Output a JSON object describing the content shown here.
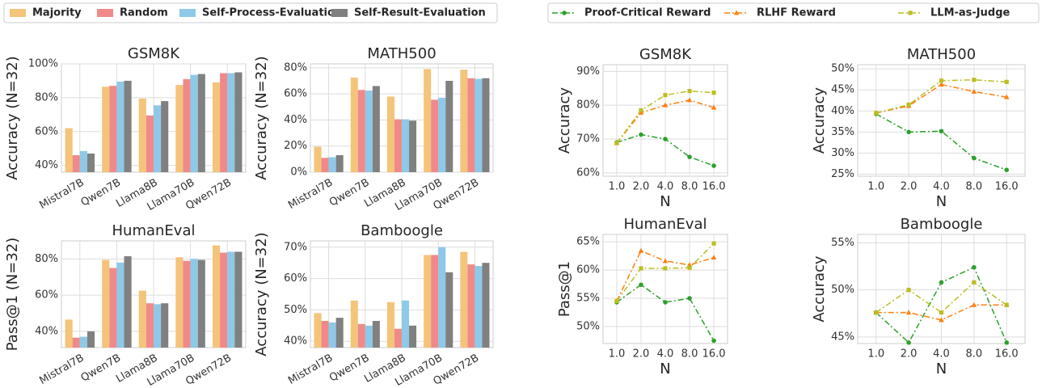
{
  "chart_data": [
    {
      "type": "bar",
      "title": "GSM8K",
      "ylabel": "Accuracy (N=32)",
      "categories": [
        "Mistral7B",
        "Qwen7B",
        "Llama8B",
        "Llama70B",
        "Qwen72B"
      ],
      "series": [
        {
          "name": "Majority",
          "color": "#f3c47a",
          "values": [
            62,
            86.5,
            79.5,
            87.5,
            89
          ]
        },
        {
          "name": "Random",
          "color": "#f08a8a",
          "values": [
            46,
            87,
            69.5,
            91,
            94.5
          ]
        },
        {
          "name": "Self-Process-Evaluation",
          "color": "#8ec9e8",
          "values": [
            48.5,
            89.5,
            75.5,
            93.5,
            94.5
          ]
        },
        {
          "name": "Self-Result-Evaluation",
          "color": "#808080",
          "values": [
            47,
            90,
            78,
            94,
            95
          ]
        }
      ],
      "ylim": [
        36,
        100
      ],
      "yticks": [
        {
          "value": 40,
          "label": "40%"
        },
        {
          "value": 60,
          "label": "60%"
        },
        {
          "value": 80,
          "label": "80%"
        },
        {
          "value": 100,
          "label": "100%"
        }
      ],
      "grid": true,
      "legend": "upper left"
    },
    {
      "type": "bar",
      "title": "MATH500",
      "ylabel": "Accuracy (N=32)",
      "categories": [
        "Mistral7B",
        "Qwen7B",
        "Llama8B",
        "Llama70B",
        "Qwen72B"
      ],
      "series": [
        {
          "color": "#f3c47a",
          "values": [
            19.5,
            72.5,
            58,
            79,
            78.5
          ]
        },
        {
          "color": "#f08a8a",
          "values": [
            11,
            63,
            40.5,
            55.5,
            72
          ]
        },
        {
          "color": "#8ec9e8",
          "values": [
            11.5,
            62.5,
            40.5,
            57,
            71.5
          ]
        },
        {
          "color": "#808080",
          "values": [
            13,
            66,
            39.5,
            70,
            72
          ]
        }
      ],
      "ylim": [
        0,
        83
      ],
      "yticks": [
        {
          "value": 0,
          "label": "0%"
        },
        {
          "value": 20,
          "label": "20%"
        },
        {
          "value": 40,
          "label": "40%"
        },
        {
          "value": 60,
          "label": "60%"
        },
        {
          "value": 80,
          "label": "80%"
        }
      ],
      "grid": true
    },
    {
      "type": "bar",
      "title": "HumanEval",
      "ylabel": "Pass@1 (N=32)",
      "categories": [
        "Mistral7B",
        "Qwen7B",
        "Llama8B",
        "Llama70B",
        "Qwen72B"
      ],
      "series": [
        {
          "color": "#f3c47a",
          "values": [
            46.5,
            79.5,
            62.5,
            81,
            87.5
          ]
        },
        {
          "color": "#f08a8a",
          "values": [
            36.5,
            75,
            55.5,
            79,
            83.5
          ]
        },
        {
          "color": "#8ec9e8",
          "values": [
            37,
            78,
            55,
            80,
            84
          ]
        },
        {
          "color": "#808080",
          "values": [
            40,
            81.5,
            55.5,
            79.5,
            84
          ]
        }
      ],
      "ylim": [
        31,
        90
      ],
      "yticks": [
        {
          "value": 40,
          "label": "40%"
        },
        {
          "value": 60,
          "label": "60%"
        },
        {
          "value": 80,
          "label": "80%"
        }
      ],
      "grid": true
    },
    {
      "type": "bar",
      "title": "Bamboogle",
      "ylabel": "Accuracy (N=32)",
      "categories": [
        "Mistral7B",
        "Qwen7B",
        "Llama8B",
        "Llama70B",
        "Qwen72B"
      ],
      "series": [
        {
          "color": "#f3c47a",
          "values": [
            49,
            53,
            52.5,
            67.5,
            68.5
          ]
        },
        {
          "color": "#f08a8a",
          "values": [
            46.5,
            45.5,
            44,
            67.5,
            64.5
          ]
        },
        {
          "color": "#8ec9e8",
          "values": [
            46,
            45,
            53,
            70,
            64
          ]
        },
        {
          "color": "#808080",
          "values": [
            47.5,
            46.5,
            45,
            62,
            65
          ]
        }
      ],
      "ylim": [
        38,
        72
      ],
      "yticks": [
        {
          "value": 40,
          "label": "40%"
        },
        {
          "value": 50,
          "label": "50%"
        },
        {
          "value": 60,
          "label": "60%"
        },
        {
          "value": 70,
          "label": "70%"
        }
      ],
      "grid": true
    },
    {
      "type": "line",
      "title": "GSM8K",
      "ylabel": "Accuracy",
      "xlabel": "N",
      "categories": [
        "1.0",
        "2.0",
        "4.0",
        "8.0",
        "16.0"
      ],
      "series": [
        {
          "name": "Proof-Critical Reward",
          "color": "#2ca02c",
          "marker": "circle",
          "linestyle": "dashdot",
          "values": [
            69,
            71.3,
            70,
            64.7,
            62.1
          ]
        },
        {
          "name": "RLHF Reward",
          "color": "#ff7f0e",
          "marker": "triangle",
          "linestyle": "dashdot",
          "values": [
            68.8,
            77.8,
            80,
            81.5,
            79.3
          ]
        },
        {
          "name": "LLM-as-Judge",
          "color": "#bcbd22",
          "marker": "square",
          "linestyle": "dashdot",
          "values": [
            68.8,
            78.5,
            83,
            84.2,
            83.7
          ]
        }
      ],
      "ylim": [
        59,
        92
      ],
      "yticks": [
        {
          "value": 60,
          "label": "60%"
        },
        {
          "value": 70,
          "label": "70%"
        },
        {
          "value": 80,
          "label": "80%"
        },
        {
          "value": 90,
          "label": "90%"
        }
      ],
      "grid": true,
      "legend": "upper right"
    },
    {
      "type": "line",
      "title": "MATH500",
      "ylabel": "Accuracy",
      "xlabel": "N",
      "categories": [
        "1.0",
        "2.0",
        "4.0",
        "8.0",
        "16.0"
      ],
      "series": [
        {
          "color": "#2ca02c",
          "marker": "circle",
          "linestyle": "dashdot",
          "values": [
            39.3,
            35,
            35.2,
            28.8,
            26
          ]
        },
        {
          "color": "#ff7f0e",
          "marker": "triangle",
          "linestyle": "dashdot",
          "values": [
            39.5,
            41.2,
            46.3,
            44.6,
            43.3
          ]
        },
        {
          "color": "#bcbd22",
          "marker": "square",
          "linestyle": "dashdot",
          "values": [
            39.5,
            41.5,
            47.2,
            47.4,
            46.9
          ]
        }
      ],
      "ylim": [
        24.5,
        51
      ],
      "yticks": [
        {
          "value": 25,
          "label": "25%"
        },
        {
          "value": 30,
          "label": "30%"
        },
        {
          "value": 35,
          "label": "35%"
        },
        {
          "value": 40,
          "label": "40%"
        },
        {
          "value": 45,
          "label": "45%"
        },
        {
          "value": 50,
          "label": "50%"
        }
      ],
      "grid": true
    },
    {
      "type": "line",
      "title": "HumanEval",
      "ylabel": "Pass@1",
      "xlabel": "N",
      "categories": [
        "1.0",
        "2.0",
        "4.0",
        "8.0",
        "16.0"
      ],
      "series": [
        {
          "color": "#2ca02c",
          "marker": "circle",
          "linestyle": "dashdot",
          "values": [
            54.3,
            57.4,
            54.3,
            55,
            47.5
          ]
        },
        {
          "color": "#ff7f0e",
          "marker": "triangle",
          "linestyle": "dashdot",
          "values": [
            54.5,
            63.4,
            61.6,
            60.9,
            62.2
          ]
        },
        {
          "color": "#bcbd22",
          "marker": "square",
          "linestyle": "dashdot",
          "values": [
            54.5,
            60.3,
            60.3,
            60.4,
            64.7
          ]
        }
      ],
      "ylim": [
        47,
        66.3
      ],
      "yticks": [
        {
          "value": 50,
          "label": "50%"
        },
        {
          "value": 55,
          "label": "55%"
        },
        {
          "value": 60,
          "label": "60%"
        },
        {
          "value": 65,
          "label": "65%"
        }
      ],
      "grid": true
    },
    {
      "type": "line",
      "title": "Bamboogle",
      "ylabel": "Accuracy",
      "xlabel": "N",
      "categories": [
        "1.0",
        "2.0",
        "4.0",
        "8.0",
        "16.0"
      ],
      "series": [
        {
          "color": "#2ca02c",
          "marker": "circle",
          "linestyle": "dashdot",
          "values": [
            47.6,
            44.4,
            50.8,
            52.4,
            44.4
          ]
        },
        {
          "color": "#ff7f0e",
          "marker": "triangle",
          "linestyle": "dashdot",
          "values": [
            47.6,
            47.6,
            46.8,
            48.4,
            48.4
          ]
        },
        {
          "color": "#bcbd22",
          "marker": "square",
          "linestyle": "dashdot",
          "values": [
            47.6,
            50,
            47.6,
            50.8,
            48.4
          ]
        }
      ],
      "ylim": [
        44.3,
        55.9
      ],
      "yticks": [
        {
          "value": 45,
          "label": "45%"
        },
        {
          "value": 50,
          "label": "50%"
        },
        {
          "value": 55,
          "label": "55%"
        }
      ],
      "grid": true
    }
  ]
}
